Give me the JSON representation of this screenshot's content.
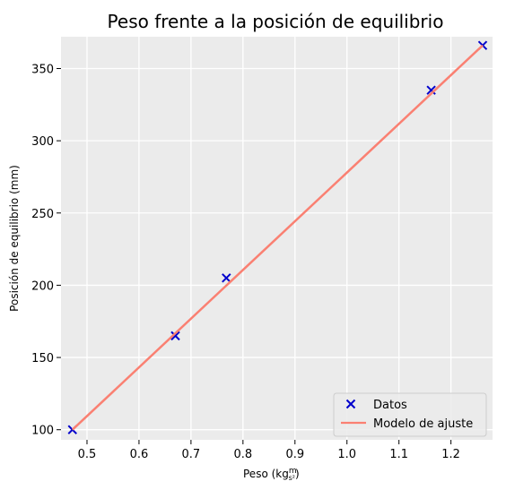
{
  "chart_data": {
    "type": "scatter",
    "title": "Peso frente a la posición de equilibrio",
    "xlabel": "Peso (kg",
    "xlabel_unit_num": "m",
    "xlabel_unit_den": "s²",
    "xlabel_close": ")",
    "ylabel": "Posición de equilibrio (mm)",
    "xlim": [
      0.45,
      1.28
    ],
    "ylim": [
      93,
      372
    ],
    "x_ticks": [
      0.5,
      0.6,
      0.7,
      0.8,
      0.9,
      1.0,
      1.1,
      1.2
    ],
    "x_tick_labels": [
      "0.5",
      "0.6",
      "0.7",
      "0.8",
      "0.9",
      "1.0",
      "1.1",
      "1.2"
    ],
    "y_ticks": [
      100,
      150,
      200,
      250,
      300,
      350
    ],
    "y_tick_labels": [
      "100",
      "150",
      "200",
      "250",
      "300",
      "350"
    ],
    "grid": true,
    "legend_position": "lower-right",
    "series": [
      {
        "name": "Datos",
        "kind": "scatter",
        "marker": "x",
        "color": "#0000cc",
        "x": [
          0.472,
          0.67,
          0.768,
          1.162,
          1.261
        ],
        "y": [
          100,
          165,
          205,
          335,
          366
        ]
      },
      {
        "name": "Modelo de ajuste",
        "kind": "line",
        "color": "#fa8072",
        "x": [
          0.472,
          1.261
        ],
        "y": [
          100,
          366
        ]
      }
    ]
  }
}
